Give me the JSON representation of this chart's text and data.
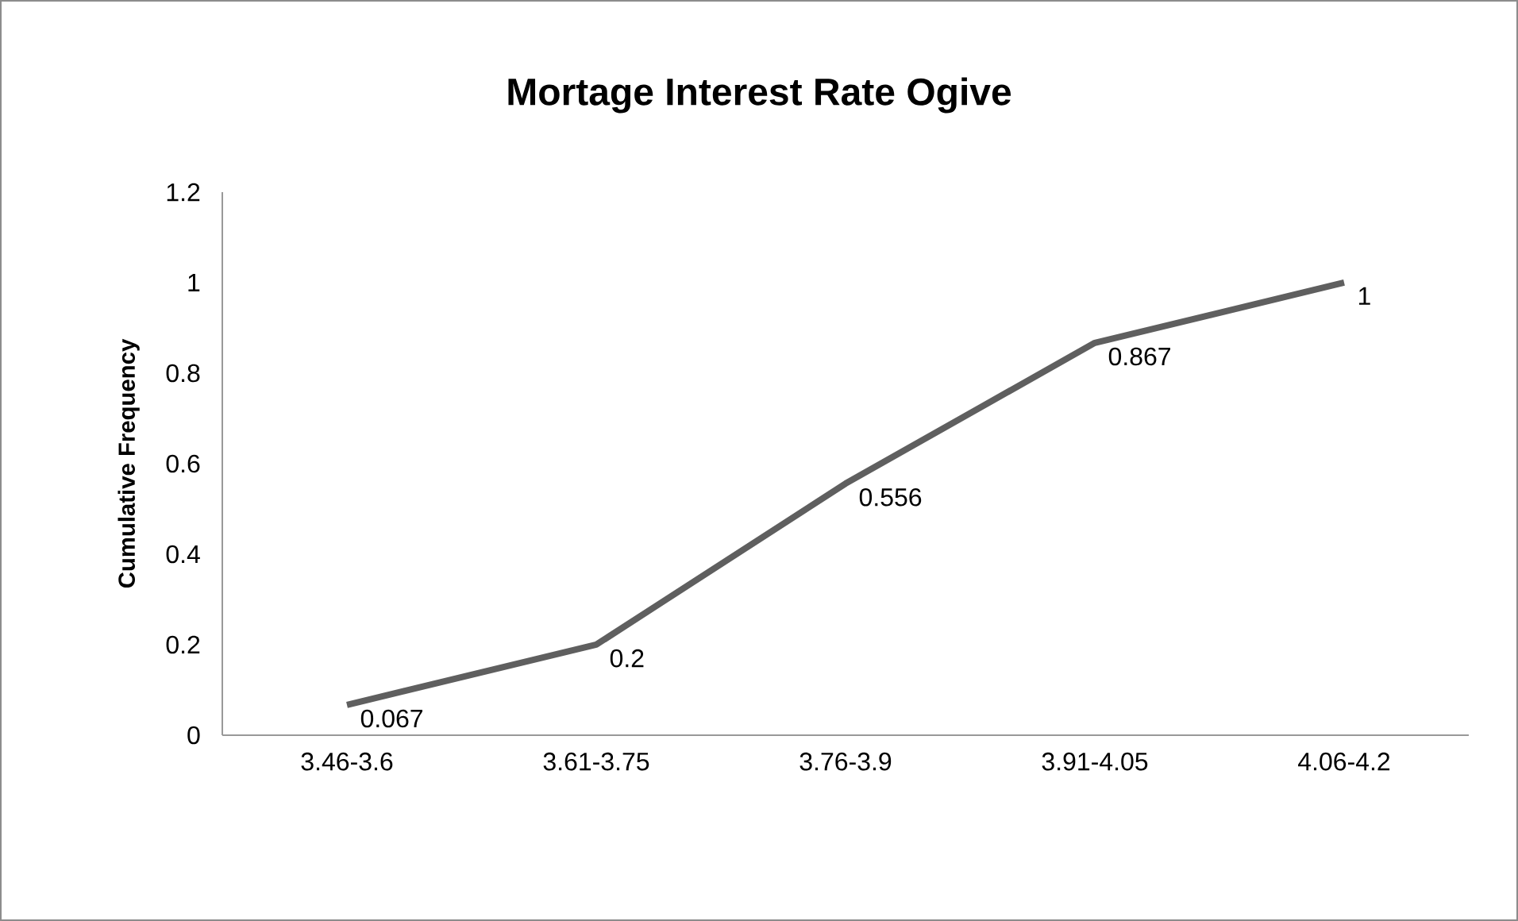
{
  "chart_data": {
    "type": "line",
    "title": "Mortage Interest Rate Ogive",
    "ylabel": "Cumulative Frequency",
    "categories": [
      "3.46-3.6",
      "3.61-3.75",
      "3.76-3.9",
      "3.91-4.05",
      "4.06-4.2"
    ],
    "values": [
      0.067,
      0.2,
      0.556,
      0.867,
      1
    ],
    "color": "#5f5f5f",
    "ylim": [
      0,
      1.2
    ],
    "yticks": [
      0,
      0.2,
      0.4,
      0.6,
      0.8,
      1,
      1.2
    ],
    "grid": false,
    "marker": "none",
    "line_style": "solid",
    "data_labels": true
  }
}
